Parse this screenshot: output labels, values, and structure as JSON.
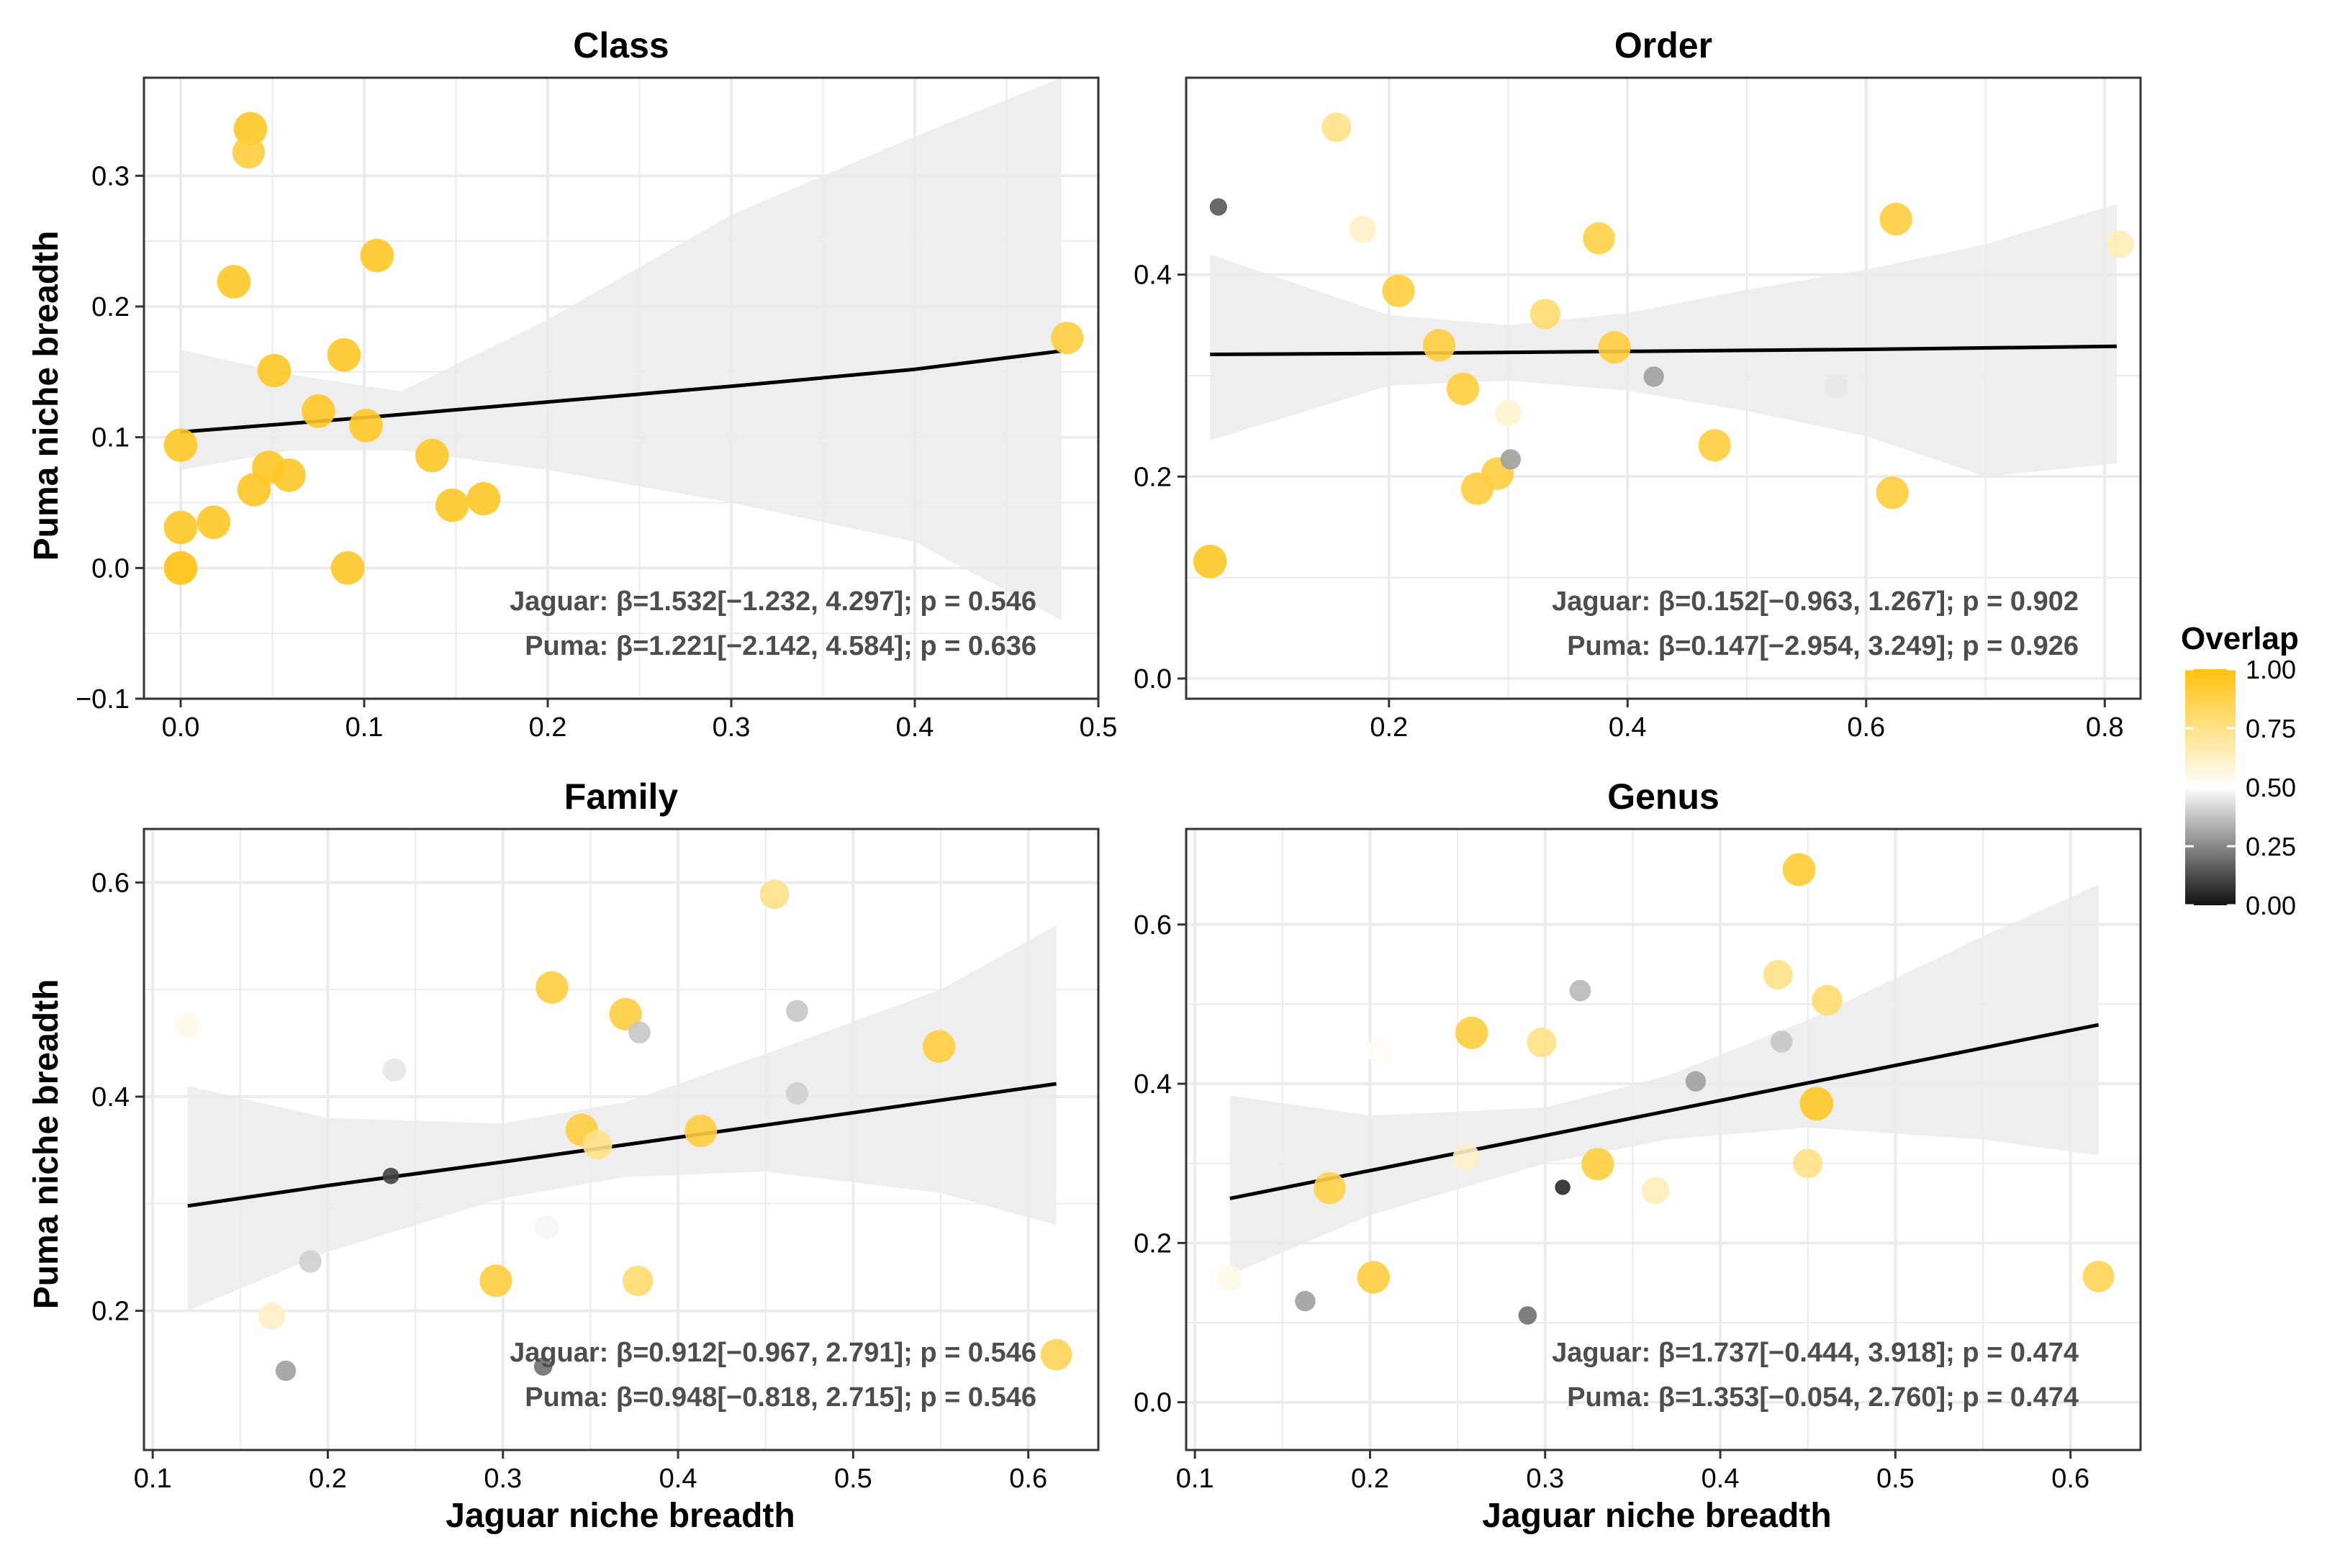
{
  "figure": {
    "ylabel": "Puma niche breadth",
    "xlabel": "Jaguar niche breadth"
  },
  "legend": {
    "title": "Overlap",
    "ticks": [
      "1.00",
      "0.75",
      "0.50",
      "0.25",
      "0.00"
    ],
    "colors": {
      "high": "#FFC20E",
      "mid": "#FFFFFF",
      "low": "#111111"
    }
  },
  "colors": {
    "fit_line": "#000000",
    "ribbon": "#EBEBEB",
    "grid": "#EBEBEB",
    "annotation": "#4D4D4D"
  },
  "chart_data": [
    {
      "type": "scatter",
      "title": "Class",
      "xlabel": "",
      "ylabel": "Puma niche breadth",
      "xlim": [
        -0.02,
        0.5
      ],
      "ylim": [
        -0.1,
        0.375
      ],
      "xticks": [
        0.0,
        0.1,
        0.2,
        0.3,
        0.4,
        0.5
      ],
      "xtick_labels": [
        "0.0",
        "0.1",
        "0.2",
        "0.3",
        "0.4",
        "0.5"
      ],
      "yticks": [
        -0.1,
        0.0,
        0.1,
        0.2,
        0.3
      ],
      "ytick_labels": [
        "−0.1",
        "0.0",
        "0.1",
        "0.2",
        "0.3"
      ],
      "fit": {
        "x": [
          0.0,
          0.1,
          0.2,
          0.3,
          0.4,
          0.48
        ],
        "y": [
          0.104,
          0.115,
          0.127,
          0.139,
          0.152,
          0.166
        ]
      },
      "ribbon": {
        "x": [
          0.0,
          0.06,
          0.12,
          0.2,
          0.3,
          0.4,
          0.48
        ],
        "lower": [
          0.075,
          0.09,
          0.09,
          0.075,
          0.05,
          0.02,
          -0.04
        ],
        "upper": [
          0.167,
          0.148,
          0.135,
          0.19,
          0.27,
          0.33,
          0.375
        ]
      },
      "annotations": [
        "Jaguar: β=1.532[−1.232, 4.297]; p = 0.546",
        "Puma: β=1.221[−2.142, 4.584]; p = 0.636"
      ],
      "points": [
        {
          "x": 0.0,
          "y": 0.094,
          "overlap": 0.95
        },
        {
          "x": 0.0,
          "y": 0.031,
          "overlap": 0.95
        },
        {
          "x": 0.0,
          "y": 0.0,
          "overlap": 0.95
        },
        {
          "x": 0.0,
          "y": 0.0,
          "overlap": 0.95
        },
        {
          "x": 0.018,
          "y": 0.035,
          "overlap": 0.95
        },
        {
          "x": 0.029,
          "y": 0.219,
          "overlap": 0.95
        },
        {
          "x": 0.038,
          "y": 0.336,
          "overlap": 0.95
        },
        {
          "x": 0.037,
          "y": 0.318,
          "overlap": 0.9
        },
        {
          "x": 0.04,
          "y": 0.06,
          "overlap": 0.95
        },
        {
          "x": 0.048,
          "y": 0.077,
          "overlap": 0.95
        },
        {
          "x": 0.051,
          "y": 0.151,
          "overlap": 0.95
        },
        {
          "x": 0.059,
          "y": 0.071,
          "overlap": 0.95
        },
        {
          "x": 0.075,
          "y": 0.12,
          "overlap": 0.95
        },
        {
          "x": 0.089,
          "y": 0.163,
          "overlap": 0.95
        },
        {
          "x": 0.091,
          "y": 0.0,
          "overlap": 0.95
        },
        {
          "x": 0.101,
          "y": 0.109,
          "overlap": 0.95
        },
        {
          "x": 0.107,
          "y": 0.239,
          "overlap": 0.95
        },
        {
          "x": 0.137,
          "y": 0.086,
          "overlap": 0.95
        },
        {
          "x": 0.148,
          "y": 0.048,
          "overlap": 0.95
        },
        {
          "x": 0.165,
          "y": 0.053,
          "overlap": 0.95
        },
        {
          "x": 0.483,
          "y": 0.176,
          "overlap": 0.9
        }
      ]
    },
    {
      "type": "scatter",
      "title": "Order",
      "xlabel": "",
      "ylabel": "",
      "xlim": [
        0.03,
        0.83
      ],
      "ylim": [
        -0.02,
        0.595
      ],
      "xticks": [
        0.2,
        0.4,
        0.6,
        0.8
      ],
      "xtick_labels": [
        "0.2",
        "0.4",
        "0.6",
        "0.8"
      ],
      "yticks": [
        0.0,
        0.2,
        0.4
      ],
      "ytick_labels": [
        "0.0",
        "0.2",
        "0.4"
      ],
      "fit": {
        "x": [
          0.05,
          0.2,
          0.4,
          0.6,
          0.81
        ],
        "y": [
          0.321,
          0.322,
          0.324,
          0.326,
          0.329
        ]
      },
      "ribbon": {
        "x": [
          0.05,
          0.2,
          0.3,
          0.4,
          0.5,
          0.6,
          0.7,
          0.81
        ],
        "lower": [
          0.236,
          0.29,
          0.295,
          0.285,
          0.265,
          0.24,
          0.2,
          0.213
        ],
        "upper": [
          0.42,
          0.36,
          0.35,
          0.362,
          0.385,
          0.405,
          0.43,
          0.47
        ]
      },
      "annotations": [
        "Jaguar: β=0.152[−0.963, 1.267]; p = 0.902",
        "Puma: β=0.147[−2.954, 3.249]; p = 0.926"
      ],
      "points": [
        {
          "x": 0.05,
          "y": 0.116,
          "overlap": 0.95
        },
        {
          "x": 0.057,
          "y": 0.467,
          "overlap": 0.15
        },
        {
          "x": 0.156,
          "y": 0.546,
          "overlap": 0.75
        },
        {
          "x": 0.178,
          "y": 0.445,
          "overlap": 0.62
        },
        {
          "x": 0.208,
          "y": 0.384,
          "overlap": 0.9
        },
        {
          "x": 0.242,
          "y": 0.33,
          "overlap": 0.9
        },
        {
          "x": 0.262,
          "y": 0.287,
          "overlap": 0.9
        },
        {
          "x": 0.274,
          "y": 0.188,
          "overlap": 0.9
        },
        {
          "x": 0.291,
          "y": 0.203,
          "overlap": 0.9
        },
        {
          "x": 0.3,
          "y": 0.263,
          "overlap": 0.6
        },
        {
          "x": 0.302,
          "y": 0.217,
          "overlap": 0.3
        },
        {
          "x": 0.331,
          "y": 0.361,
          "overlap": 0.8
        },
        {
          "x": 0.376,
          "y": 0.436,
          "overlap": 0.88
        },
        {
          "x": 0.389,
          "y": 0.328,
          "overlap": 0.9
        },
        {
          "x": 0.422,
          "y": 0.299,
          "overlap": 0.3
        },
        {
          "x": 0.473,
          "y": 0.231,
          "overlap": 0.9
        },
        {
          "x": 0.575,
          "y": 0.289,
          "overlap": 0.45
        },
        {
          "x": 0.622,
          "y": 0.184,
          "overlap": 0.9
        },
        {
          "x": 0.625,
          "y": 0.455,
          "overlap": 0.9
        },
        {
          "x": 0.813,
          "y": 0.43,
          "overlap": 0.65
        }
      ]
    },
    {
      "type": "scatter",
      "title": "Family",
      "xlabel": "Jaguar niche breadth",
      "ylabel": "Puma niche breadth",
      "xlim": [
        0.095,
        0.64
      ],
      "ylim": [
        0.07,
        0.65
      ],
      "xticks": [
        0.1,
        0.2,
        0.3,
        0.4,
        0.5,
        0.6
      ],
      "xtick_labels": [
        "0.1",
        "0.2",
        "0.3",
        "0.4",
        "0.5",
        "0.6"
      ],
      "yticks": [
        0.2,
        0.4,
        0.6
      ],
      "ytick_labels": [
        "0.2",
        "0.4",
        "0.6"
      ],
      "fit": {
        "x": [
          0.12,
          0.2,
          0.3,
          0.4,
          0.5,
          0.616
        ],
        "y": [
          0.298,
          0.317,
          0.339,
          0.362,
          0.385,
          0.412
        ]
      },
      "ribbon": {
        "x": [
          0.12,
          0.2,
          0.3,
          0.37,
          0.45,
          0.55,
          0.616
        ],
        "lower": [
          0.2,
          0.255,
          0.305,
          0.325,
          0.33,
          0.31,
          0.28
        ],
        "upper": [
          0.41,
          0.38,
          0.375,
          0.395,
          0.44,
          0.5,
          0.56
        ]
      },
      "annotations": [
        "Jaguar: β=0.912[−0.967, 2.791]; p = 0.546",
        "Puma: β=0.948[−0.818, 2.715]; p = 0.546"
      ],
      "points": [
        {
          "x": 0.12,
          "y": 0.467,
          "overlap": 0.55
        },
        {
          "x": 0.168,
          "y": 0.195,
          "overlap": 0.62
        },
        {
          "x": 0.176,
          "y": 0.144,
          "overlap": 0.3
        },
        {
          "x": 0.19,
          "y": 0.246,
          "overlap": 0.4
        },
        {
          "x": 0.236,
          "y": 0.326,
          "overlap": 0.1
        },
        {
          "x": 0.238,
          "y": 0.425,
          "overlap": 0.45
        },
        {
          "x": 0.296,
          "y": 0.228,
          "overlap": 0.9
        },
        {
          "x": 0.325,
          "y": 0.278,
          "overlap": 0.48
        },
        {
          "x": 0.323,
          "y": 0.148,
          "overlap": 0.2
        },
        {
          "x": 0.328,
          "y": 0.502,
          "overlap": 0.9
        },
        {
          "x": 0.345,
          "y": 0.369,
          "overlap": 0.9
        },
        {
          "x": 0.354,
          "y": 0.355,
          "overlap": 0.75
        },
        {
          "x": 0.37,
          "y": 0.477,
          "overlap": 0.9
        },
        {
          "x": 0.377,
          "y": 0.228,
          "overlap": 0.8
        },
        {
          "x": 0.378,
          "y": 0.46,
          "overlap": 0.38
        },
        {
          "x": 0.413,
          "y": 0.368,
          "overlap": 0.9
        },
        {
          "x": 0.455,
          "y": 0.589,
          "overlap": 0.75
        },
        {
          "x": 0.468,
          "y": 0.48,
          "overlap": 0.38
        },
        {
          "x": 0.468,
          "y": 0.403,
          "overlap": 0.4
        },
        {
          "x": 0.549,
          "y": 0.447,
          "overlap": 0.9
        },
        {
          "x": 0.616,
          "y": 0.159,
          "overlap": 0.85
        }
      ]
    },
    {
      "type": "scatter",
      "title": "Genus",
      "xlabel": "Jaguar niche breadth",
      "ylabel": "",
      "xlim": [
        0.095,
        0.64
      ],
      "ylim": [
        -0.06,
        0.72
      ],
      "xticks": [
        0.1,
        0.2,
        0.3,
        0.4,
        0.5,
        0.6
      ],
      "xtick_labels": [
        "0.1",
        "0.2",
        "0.3",
        "0.4",
        "0.5",
        "0.6"
      ],
      "yticks": [
        0.0,
        0.2,
        0.4,
        0.6
      ],
      "ytick_labels": [
        "0.0",
        "0.2",
        "0.4",
        "0.6"
      ],
      "fit": {
        "x": [
          0.12,
          0.2,
          0.3,
          0.4,
          0.5,
          0.616
        ],
        "y": [
          0.256,
          0.291,
          0.335,
          0.379,
          0.423,
          0.474
        ]
      },
      "ribbon": {
        "x": [
          0.12,
          0.2,
          0.3,
          0.37,
          0.45,
          0.55,
          0.616
        ],
        "lower": [
          0.16,
          0.235,
          0.3,
          0.33,
          0.345,
          0.33,
          0.31
        ],
        "upper": [
          0.385,
          0.36,
          0.37,
          0.41,
          0.48,
          0.585,
          0.65
        ]
      },
      "annotations": [
        "Jaguar: β=1.737[−0.444, 3.918]; p = 0.474",
        "Puma: β=1.353[−0.054, 2.760]; p = 0.474"
      ],
      "points": [
        {
          "x": 0.12,
          "y": 0.156,
          "overlap": 0.55
        },
        {
          "x": 0.163,
          "y": 0.127,
          "overlap": 0.3
        },
        {
          "x": 0.177,
          "y": 0.269,
          "overlap": 0.88
        },
        {
          "x": 0.202,
          "y": 0.157,
          "overlap": 0.9
        },
        {
          "x": 0.205,
          "y": 0.441,
          "overlap": 0.52
        },
        {
          "x": 0.258,
          "y": 0.464,
          "overlap": 0.9
        },
        {
          "x": 0.255,
          "y": 0.308,
          "overlap": 0.62
        },
        {
          "x": 0.29,
          "y": 0.109,
          "overlap": 0.2
        },
        {
          "x": 0.298,
          "y": 0.452,
          "overlap": 0.75
        },
        {
          "x": 0.31,
          "y": 0.27,
          "overlap": 0.05
        },
        {
          "x": 0.32,
          "y": 0.517,
          "overlap": 0.35
        },
        {
          "x": 0.33,
          "y": 0.299,
          "overlap": 0.9
        },
        {
          "x": 0.363,
          "y": 0.266,
          "overlap": 0.65
        },
        {
          "x": 0.386,
          "y": 0.403,
          "overlap": 0.3
        },
        {
          "x": 0.433,
          "y": 0.537,
          "overlap": 0.75
        },
        {
          "x": 0.435,
          "y": 0.453,
          "overlap": 0.38
        },
        {
          "x": 0.445,
          "y": 0.669,
          "overlap": 0.92
        },
        {
          "x": 0.45,
          "y": 0.3,
          "overlap": 0.75
        },
        {
          "x": 0.455,
          "y": 0.375,
          "overlap": 0.95
        },
        {
          "x": 0.461,
          "y": 0.505,
          "overlap": 0.8
        },
        {
          "x": 0.616,
          "y": 0.158,
          "overlap": 0.85
        }
      ]
    }
  ]
}
